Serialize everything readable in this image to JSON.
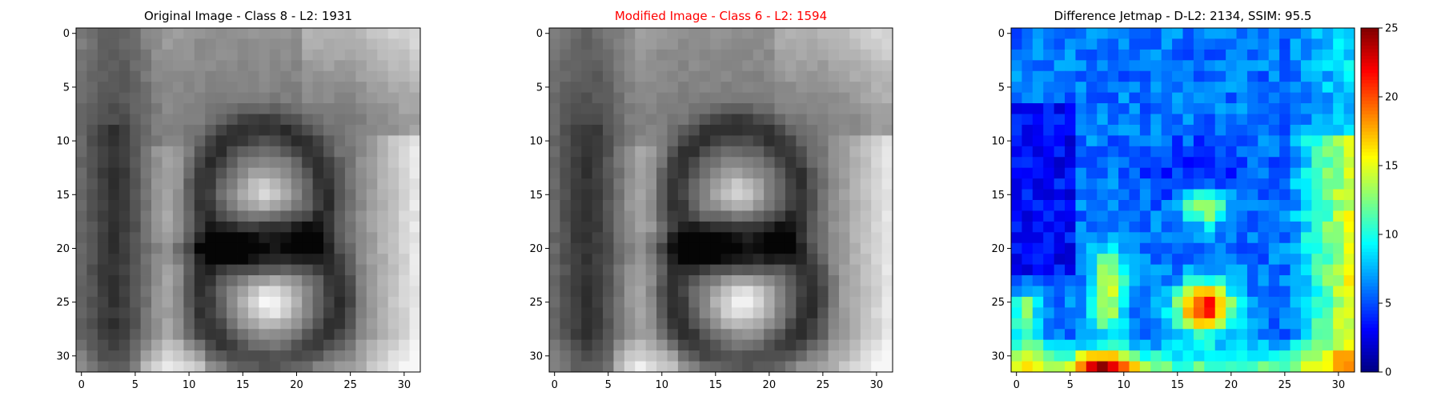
{
  "colors": {
    "title_default": "#000000",
    "title_modified": "#ff0000",
    "axes": "#000000"
  },
  "chart_data": [
    {
      "type": "heatmap",
      "title": "Original Image - Class 8 - L2: 1931",
      "colormap": "gray",
      "grid": false,
      "shape": [
        32,
        32
      ],
      "xlim": [
        -0.5,
        31.5
      ],
      "ylim": [
        31.5,
        -0.5
      ],
      "xticks": [
        0,
        5,
        10,
        15,
        20,
        25,
        30
      ],
      "yticks": [
        0,
        5,
        10,
        15,
        20,
        25,
        30
      ]
    },
    {
      "type": "heatmap",
      "title": "Modified Image - Class 6 - L2: 1594",
      "title_color": "#ff0000",
      "colormap": "gray",
      "grid": false,
      "shape": [
        32,
        32
      ],
      "xlim": [
        -0.5,
        31.5
      ],
      "ylim": [
        31.5,
        -0.5
      ],
      "xticks": [
        0,
        5,
        10,
        15,
        20,
        25,
        30
      ],
      "yticks": [
        0,
        5,
        10,
        15,
        20,
        25,
        30
      ]
    },
    {
      "type": "heatmap",
      "title": "Difference Jetmap - D-L2: 2134, SSIM: 95.5",
      "colormap": "jet",
      "grid": false,
      "shape": [
        32,
        32
      ],
      "xlim": [
        -0.5,
        31.5
      ],
      "ylim": [
        31.5,
        -0.5
      ],
      "xticks": [
        0,
        5,
        10,
        15,
        20,
        25,
        30
      ],
      "yticks": [
        0,
        5,
        10,
        15,
        20,
        25,
        30
      ],
      "colorbar": {
        "min": 0,
        "max": 25,
        "ticks": [
          0,
          5,
          10,
          15,
          20,
          25
        ]
      }
    }
  ]
}
